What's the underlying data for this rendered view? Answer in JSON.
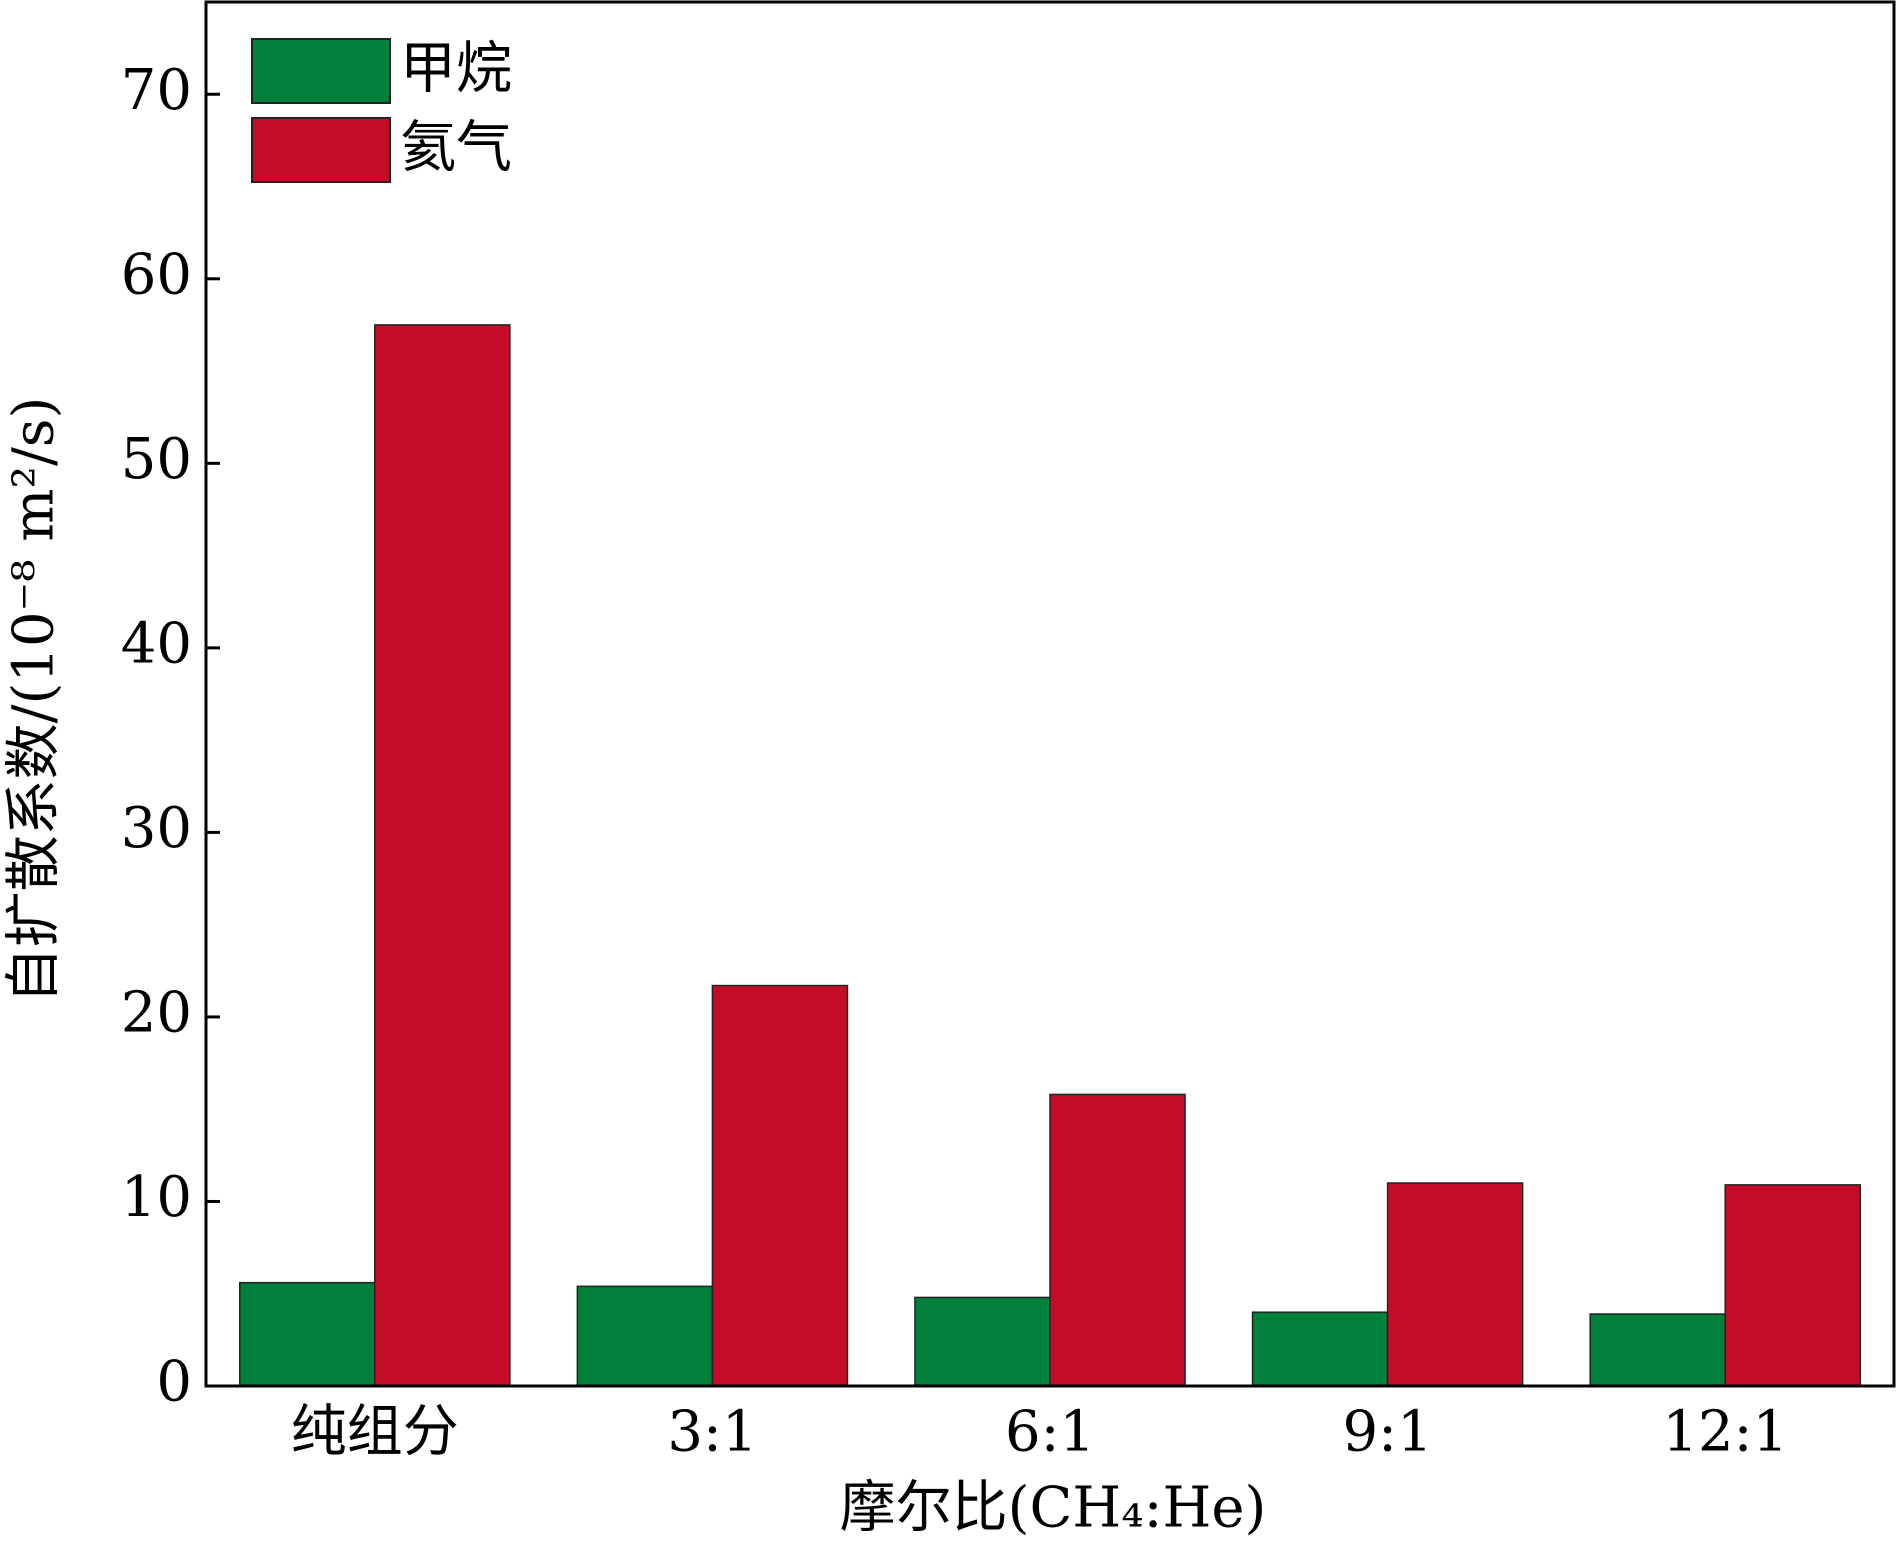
{
  "chart_data": {
    "type": "bar",
    "y_label": "自扩散系数/(10⁻⁸ m²/s)",
    "x_label": "摩尔比(CH₄:He)",
    "categories": [
      "纯组分",
      "3:1",
      "6:1",
      "9:1",
      "12:1"
    ],
    "series": [
      {
        "name": "甲烷",
        "color": "#00803a",
        "values": [
          5.6,
          5.4,
          4.8,
          4.0,
          3.9
        ]
      },
      {
        "name": "氦气",
        "color": "#c50b28",
        "values": [
          57.5,
          21.7,
          15.8,
          11.0,
          10.9
        ]
      }
    ],
    "ylim": [
      0,
      75
    ],
    "yticks": [
      0,
      10,
      20,
      30,
      40,
      50,
      60,
      70
    ],
    "legend": "upper-left"
  }
}
